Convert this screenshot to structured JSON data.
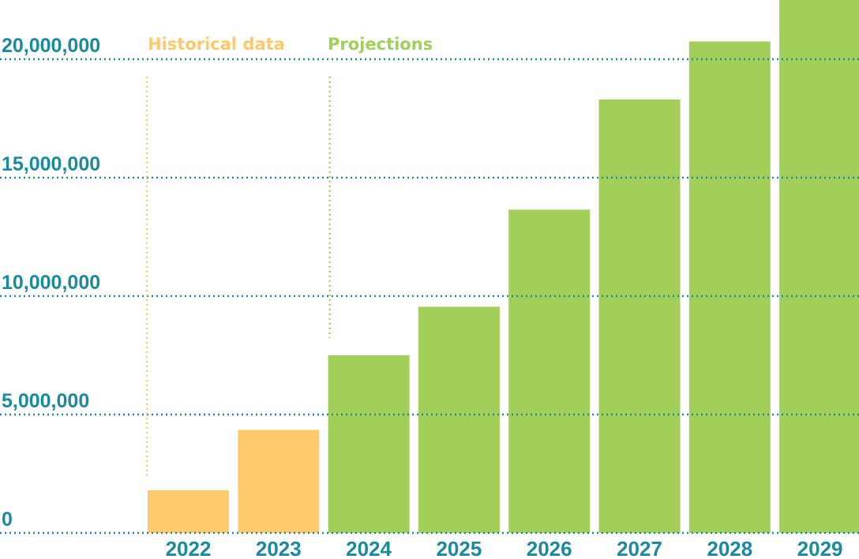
{
  "chart_data": {
    "type": "bar",
    "categories": [
      "2022",
      "2023",
      "2024",
      "2025",
      "2026",
      "2027",
      "2028",
      "2029"
    ],
    "values": [
      1800000,
      4350000,
      7500000,
      9550000,
      13650000,
      18300000,
      20750000,
      22500000
    ],
    "segment": [
      "historical",
      "historical",
      "projection",
      "projection",
      "projection",
      "projection",
      "projection",
      "projection"
    ],
    "ylim": [
      0,
      22500000
    ],
    "yticks": [
      0,
      5000000,
      10000000,
      15000000,
      20000000
    ],
    "ytick_labels": [
      "0",
      "5,000,000",
      "10,000,000",
      "15,000,000",
      "20,000,000"
    ],
    "grid": true,
    "annotations": {
      "historical": "Historical data",
      "projections": "Projections"
    },
    "colors": {
      "historical": "#fdc96a",
      "projection": "#a2cf59",
      "axis_text": "#1a8a9e",
      "grid": "#1a8a9e"
    }
  }
}
